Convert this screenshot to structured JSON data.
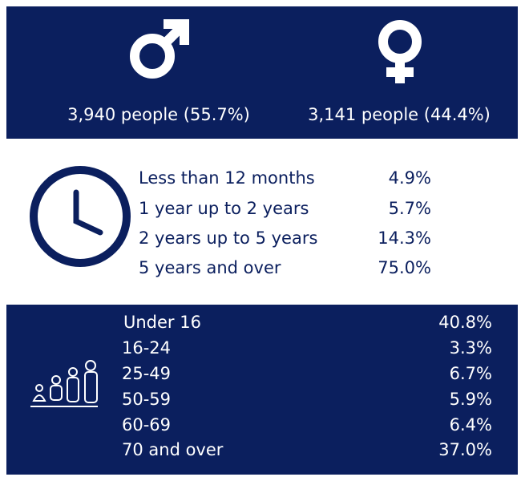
{
  "gender": [
    {
      "label": "3,940 people (55.7%)"
    },
    {
      "label": "3,141 people (44.4%)"
    }
  ],
  "duration": [
    {
      "label": "Less than 12 months",
      "value": "4.9%"
    },
    {
      "label": "1 year up to 2 years",
      "value": "5.7%"
    },
    {
      "label": "2 years up to 5 years",
      "value": "14.3%"
    },
    {
      "label": "5 years and over",
      "value": "75.0%"
    }
  ],
  "age": [
    {
      "label": "Under 16",
      "value": "40.8%"
    },
    {
      "label": "16-24",
      "value": "3.3%"
    },
    {
      "label": "25-49",
      "value": "6.7%"
    },
    {
      "label": "50-59",
      "value": "5.9%"
    },
    {
      "label": "60-69",
      "value": "6.4%"
    },
    {
      "label": "70 and over",
      "value": "37.0%"
    }
  ]
}
